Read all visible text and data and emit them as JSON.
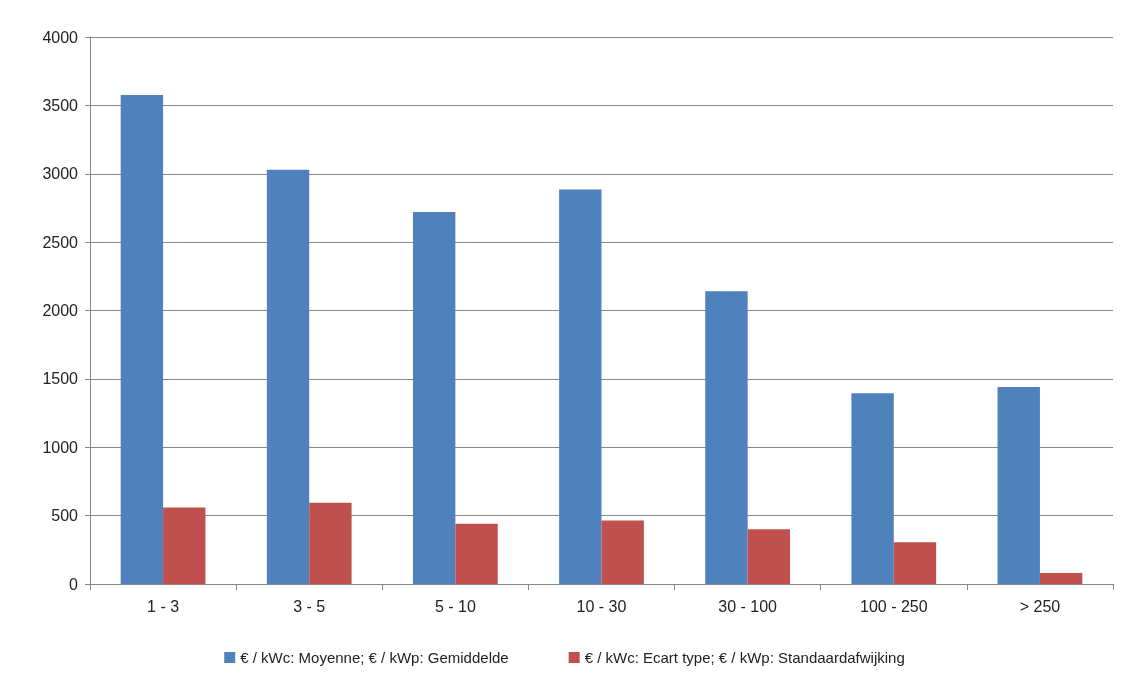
{
  "chart_data": {
    "type": "bar",
    "categories": [
      "1 - 3",
      "3 - 5",
      "5 - 10",
      "10 - 30",
      "30 - 100",
      "100 - 250",
      "> 250"
    ],
    "series": [
      {
        "name": "€ / kWc: Moyenne; € / kWp: Gemiddelde",
        "color": "#4f81bd",
        "values": [
          3575,
          3030,
          2720,
          2885,
          2140,
          1395,
          1440
        ]
      },
      {
        "name": "€ / kWc: Ecart type; € / kWp: Standaardafwijking",
        "color": "#c0504d",
        "values": [
          560,
          595,
          440,
          465,
          400,
          305,
          80
        ]
      }
    ],
    "ylim": [
      0,
      4000
    ],
    "yticks": [
      0,
      500,
      1000,
      1500,
      2000,
      2500,
      3000,
      3500,
      4000
    ],
    "grid": "y",
    "legend": "bottom"
  }
}
